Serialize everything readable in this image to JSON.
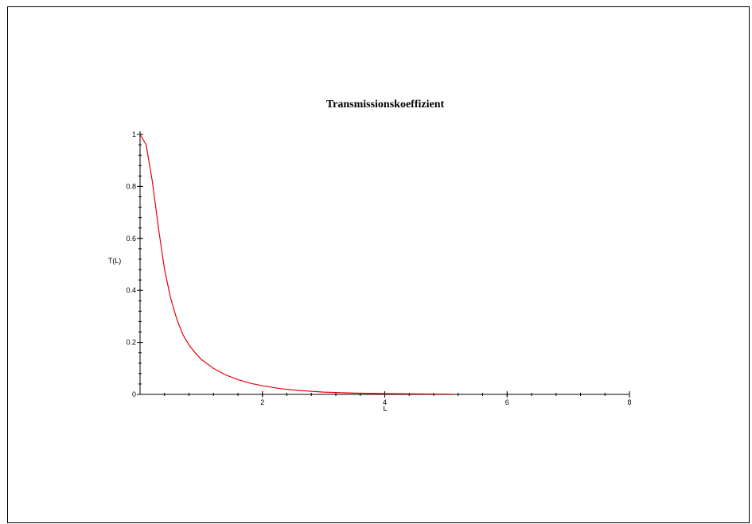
{
  "chart_data": {
    "type": "line",
    "title": "Transmissionskoeffizient",
    "xlabel": "L",
    "ylabel": "T(L)",
    "xlim": [
      0,
      8
    ],
    "ylim": [
      0,
      1
    ],
    "grid": false,
    "x_ticks": [
      {
        "value": 2,
        "label": "2"
      },
      {
        "value": 4,
        "label": "4"
      },
      {
        "value": 6,
        "label": "6"
      },
      {
        "value": 8,
        "label": "8"
      }
    ],
    "y_ticks": [
      {
        "value": 0,
        "label": "0"
      },
      {
        "value": 0.2,
        "label": "0.2"
      },
      {
        "value": 0.4,
        "label": "0.4"
      },
      {
        "value": 0.6,
        "label": "0.6"
      },
      {
        "value": 0.8,
        "label": "0.8"
      },
      {
        "value": 1,
        "label": "1"
      }
    ],
    "series": [
      {
        "color": "#e8000b",
        "x": [
          0,
          0.1,
          0.2,
          0.3,
          0.4,
          0.5,
          0.6,
          0.7,
          0.8,
          0.9,
          1.0,
          1.2,
          1.4,
          1.6,
          1.8,
          2.0,
          2.3,
          2.6,
          3.0,
          3.5,
          4.0,
          4.5,
          5.1
        ],
        "y": [
          1.0,
          0.96,
          0.82,
          0.64,
          0.48,
          0.37,
          0.29,
          0.23,
          0.19,
          0.16,
          0.135,
          0.1,
          0.075,
          0.057,
          0.043,
          0.033,
          0.022,
          0.015,
          0.009,
          0.005,
          0.003,
          0.002,
          0.001
        ]
      }
    ]
  }
}
